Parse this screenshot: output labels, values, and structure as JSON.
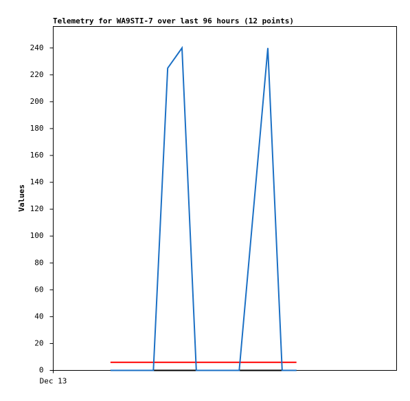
{
  "chart_data": {
    "type": "line",
    "title": "Telemetry for WA9STI-7 over last 96 hours (12 points)",
    "y_label": "Values",
    "xlim": [
      0,
      96
    ],
    "xticks": [
      {
        "value": 0,
        "label": "Dec 13"
      }
    ],
    "ylim": [
      0,
      256
    ],
    "yticks": [
      0,
      20,
      40,
      60,
      80,
      100,
      120,
      140,
      160,
      180,
      200,
      220,
      240
    ],
    "series": [
      {
        "color": "#000000",
        "x": [
          16,
          68
        ],
        "values": [
          0,
          0
        ]
      },
      {
        "color": "#ff0000",
        "x": [
          16,
          68
        ],
        "values": [
          6,
          6
        ]
      },
      {
        "color": "#1a6fc4",
        "x": [
          16,
          28,
          32,
          36,
          40,
          52,
          60,
          64,
          68
        ],
        "values": [
          0,
          0,
          225,
          240,
          0,
          0,
          240,
          0,
          0
        ]
      }
    ]
  }
}
